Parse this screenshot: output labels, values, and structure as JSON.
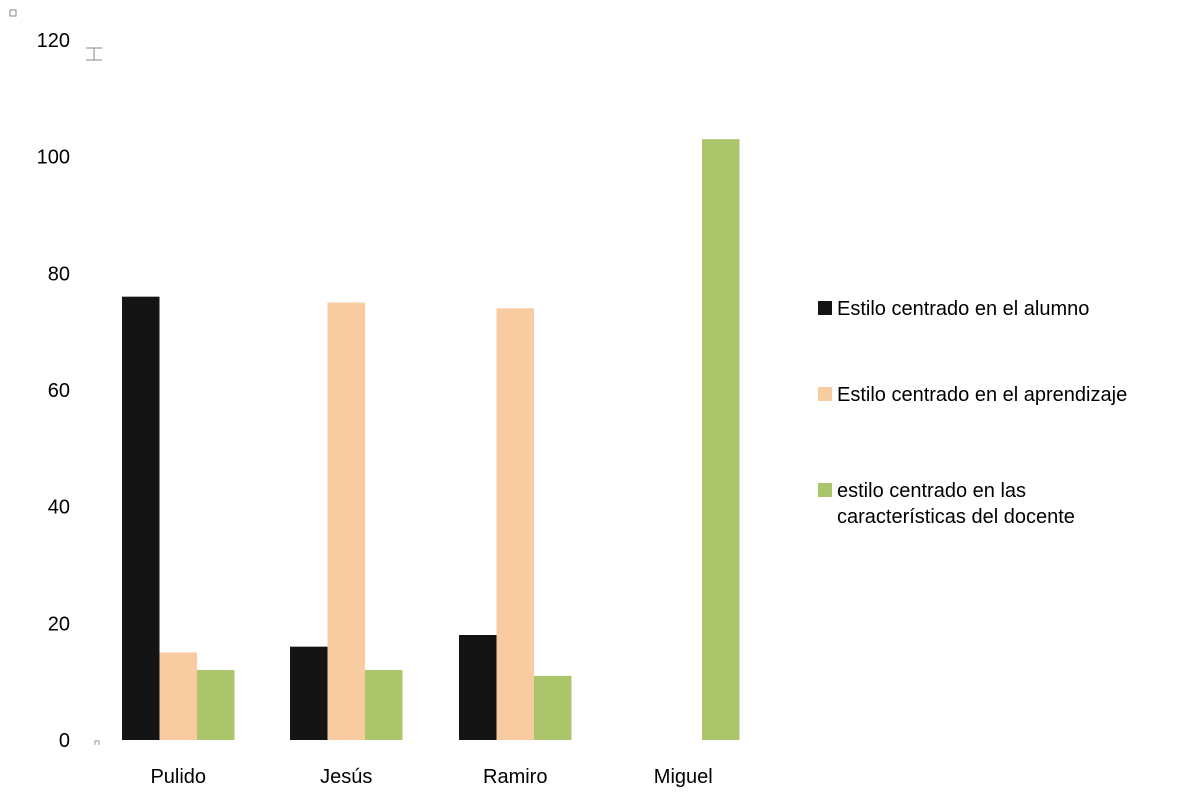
{
  "chart_data": {
    "type": "bar",
    "categories": [
      "Pulido",
      "Jesús",
      "Ramiro",
      "Miguel"
    ],
    "series": [
      {
        "name": "Estilo centrado en el alumno",
        "color": "#141414",
        "values": [
          76,
          16,
          18,
          0
        ]
      },
      {
        "name": "Estilo centrado en el aprendizaje",
        "color": "#f8cba0",
        "values": [
          15,
          75,
          74,
          0
        ]
      },
      {
        "name": "estilo centrado en las características del docente",
        "color": "#abc56b",
        "values": [
          12,
          12,
          11,
          103
        ]
      }
    ],
    "yticks": [
      "0",
      "20",
      "40",
      "60",
      "80",
      "100",
      "120"
    ],
    "ylim": [
      0,
      120
    ],
    "grid": false,
    "legend": {
      "placement": "right",
      "lines": [
        [
          "Estilo centrado en el alumno"
        ],
        [
          "Estilo centrado en el aprendizaje"
        ],
        [
          "estilo centrado en las",
          "características del docente"
        ]
      ]
    }
  }
}
